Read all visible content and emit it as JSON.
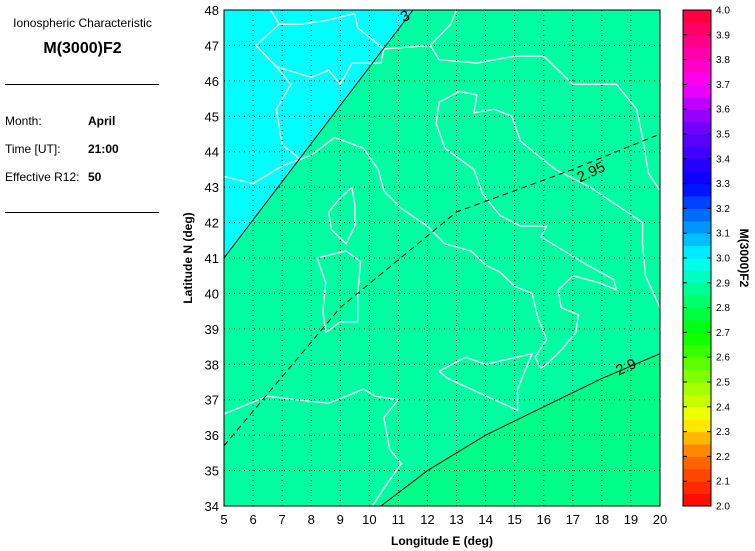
{
  "panel": {
    "subtitle": "Ionospheric Characteristic",
    "title": "M(3000)F2",
    "month_label": "Month:",
    "month_value": "April",
    "time_label": "Time [UT]:",
    "time_value": "21:00",
    "r12_label": "Effective R12:",
    "r12_value": "50"
  },
  "chart_data": {
    "type": "heatmap",
    "xlabel": "Longitude E (deg)",
    "ylabel": "Latitude N (deg)",
    "xlim": [
      5,
      20
    ],
    "ylim": [
      34,
      48
    ],
    "xticks": [
      "5",
      "6",
      "7",
      "8",
      "9",
      "10",
      "11",
      "12",
      "13",
      "14",
      "15",
      "16",
      "17",
      "18",
      "19",
      "20"
    ],
    "yticks": [
      "34",
      "35",
      "36",
      "37",
      "38",
      "39",
      "40",
      "41",
      "42",
      "43",
      "44",
      "45",
      "46",
      "47",
      "48"
    ],
    "grid": true,
    "contours": [
      {
        "level": 3,
        "label": "3",
        "style": "solid",
        "points": [
          [
            5,
            41.0
          ],
          [
            11.5,
            48.0
          ]
        ],
        "label_at": [
          11.3,
          47.7
        ]
      },
      {
        "level": 2.95,
        "label": "2.95",
        "style": "dashed",
        "points": [
          [
            5,
            35.7
          ],
          [
            9,
            39.6
          ],
          [
            13,
            42.3
          ],
          [
            17,
            43.5
          ],
          [
            20,
            44.5
          ]
        ],
        "label_at": [
          17.7,
          43.3
        ]
      },
      {
        "level": 2.9,
        "label": "2.9",
        "style": "solid",
        "points": [
          [
            10.4,
            34.0
          ],
          [
            12,
            35.0
          ],
          [
            14,
            36.0
          ],
          [
            16,
            36.8
          ],
          [
            18,
            37.6
          ],
          [
            20,
            38.3
          ]
        ],
        "label_at": [
          18.9,
          37.8
        ]
      }
    ],
    "regions": [
      {
        "range": "> 3.0",
        "color": "#00FFFF"
      },
      {
        "range": "2.9 - 3.0",
        "color": "#00FFA0"
      },
      {
        "range": "< 2.9",
        "color": "#00FF88"
      }
    ],
    "colorbar": {
      "label": "M(3000)F2",
      "min": 2.0,
      "max": 4.0,
      "ticks": [
        "2.0",
        "2.1",
        "2.2",
        "2.3",
        "2.4",
        "2.5",
        "2.6",
        "2.7",
        "2.8",
        "2.9",
        "3.0",
        "3.1",
        "3.2",
        "3.3",
        "3.4",
        "3.5",
        "3.6",
        "3.7",
        "3.8",
        "3.9",
        "4.0"
      ],
      "stops": [
        [
          2.0,
          "#FF0000"
        ],
        [
          2.2,
          "#FF7000"
        ],
        [
          2.35,
          "#FFFF00"
        ],
        [
          2.7,
          "#00FF00"
        ],
        [
          3.0,
          "#00FFFF"
        ],
        [
          3.3,
          "#0000FF"
        ],
        [
          3.55,
          "#8000FF"
        ],
        [
          3.7,
          "#FF00FF"
        ],
        [
          4.0,
          "#FF0030"
        ]
      ]
    }
  }
}
